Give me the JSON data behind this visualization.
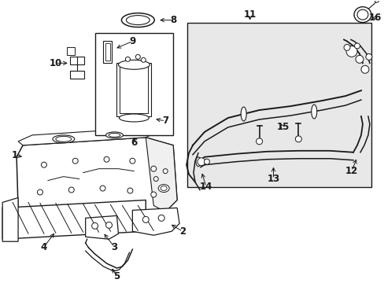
{
  "bg_color": "#ffffff",
  "line_color": "#1a1a1a",
  "gray_bg": "#e8e8e8",
  "figsize": [
    4.89,
    3.6
  ],
  "dpi": 100
}
